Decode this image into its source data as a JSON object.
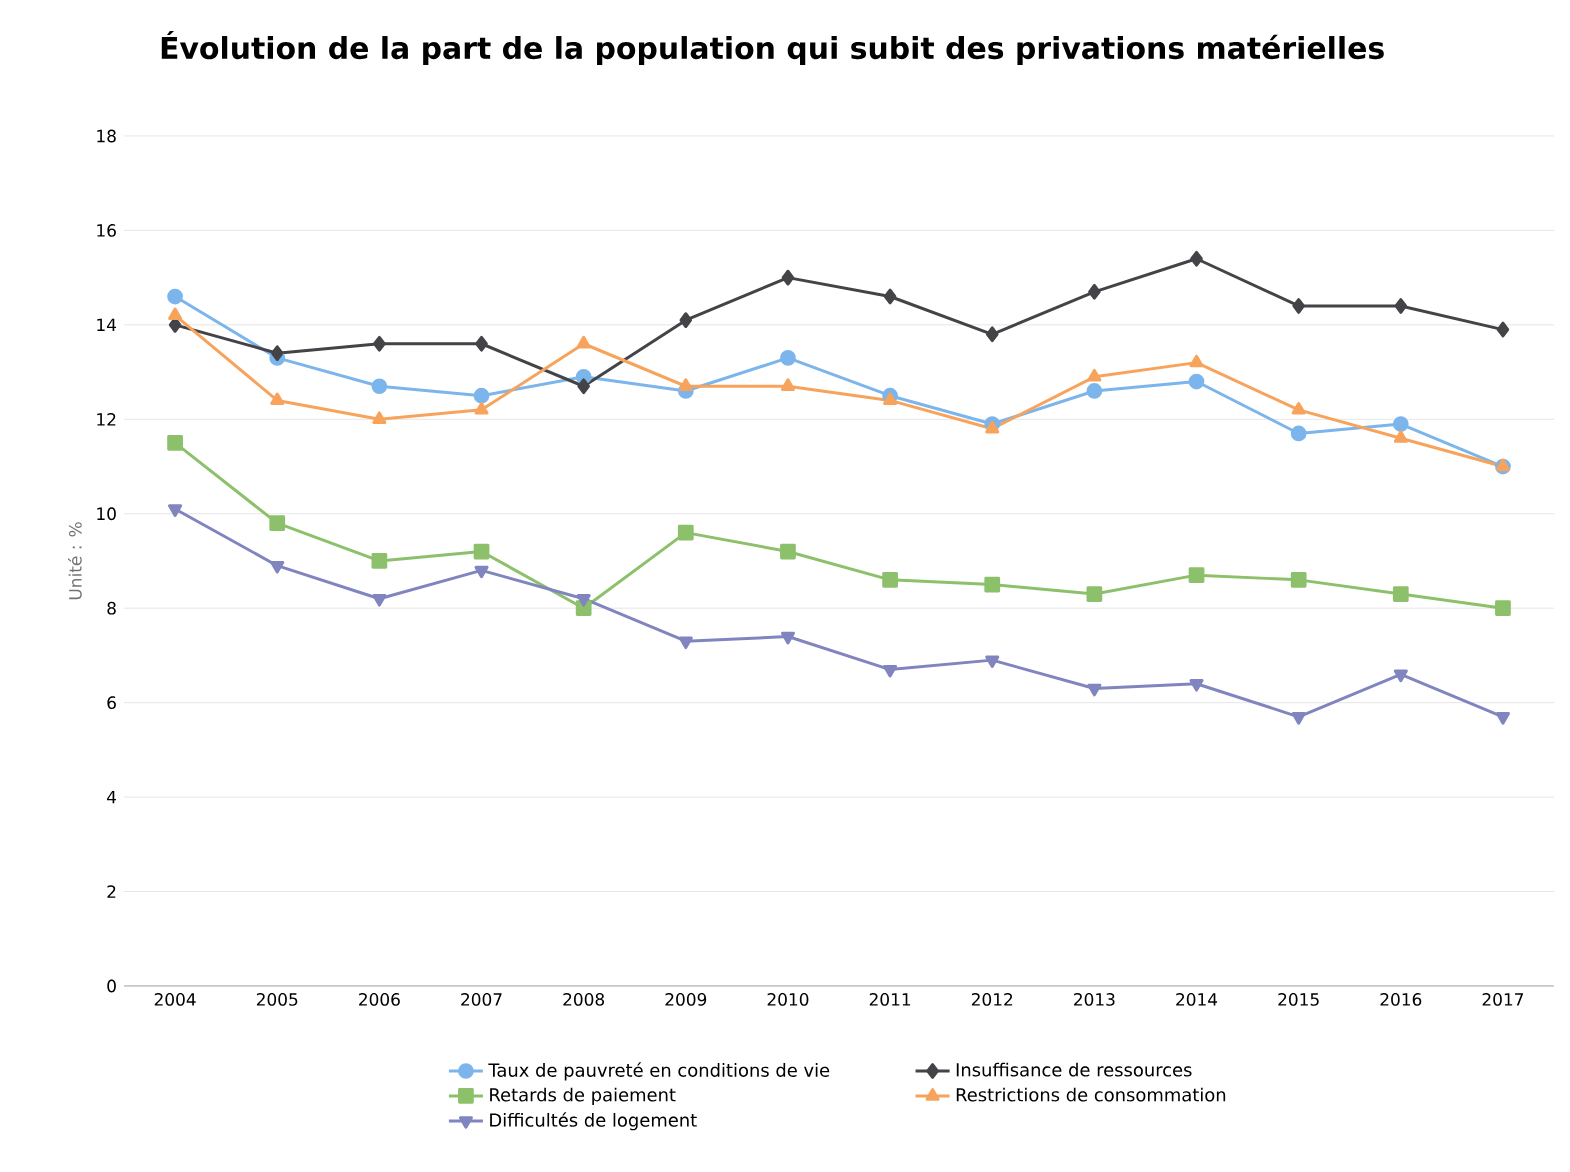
{
  "chart_data": {
    "type": "line",
    "title": "Évolution de la part de la population qui subit des privations matérielles",
    "ylabel": "Unité : %",
    "categories": [
      "2004",
      "2005",
      "2006",
      "2007",
      "2008",
      "2009",
      "2010",
      "2011",
      "2012",
      "2013",
      "2014",
      "2015",
      "2016",
      "2017"
    ],
    "ylim": [
      0,
      18
    ],
    "yticks": [
      0,
      2,
      4,
      6,
      8,
      10,
      12,
      14,
      16,
      18
    ],
    "grid": "y",
    "legend": "bottom",
    "line_style": "solid",
    "series": [
      {
        "name": "Taux de pauvreté en conditions de vie",
        "color": "#7cb5ec",
        "marker": "circle",
        "values": [
          14.6,
          13.3,
          12.7,
          12.5,
          12.9,
          12.6,
          13.3,
          12.5,
          11.9,
          12.6,
          12.8,
          11.7,
          11.9,
          11.0
        ]
      },
      {
        "name": "Insuffisance de ressources",
        "color": "#434348",
        "marker": "diamond",
        "values": [
          14.0,
          13.4,
          13.6,
          13.6,
          12.7,
          14.1,
          15.0,
          14.6,
          13.8,
          14.7,
          15.4,
          14.4,
          14.4,
          13.9
        ]
      },
      {
        "name": "Retards de paiement",
        "color": "#8cc06a",
        "marker": "square",
        "values": [
          11.5,
          9.8,
          9.0,
          9.2,
          8.0,
          9.6,
          9.2,
          8.6,
          8.5,
          8.3,
          8.7,
          8.6,
          8.3,
          8.0
        ]
      },
      {
        "name": "Restrictions de consommation",
        "color": "#f7a35c",
        "marker": "triangle",
        "values": [
          14.2,
          12.4,
          12.0,
          12.2,
          13.6,
          12.7,
          12.7,
          12.4,
          11.8,
          12.9,
          13.2,
          12.2,
          11.6,
          11.0
        ]
      },
      {
        "name": "Difficultés de logement",
        "color": "#8085c0",
        "marker": "triangle-down",
        "values": [
          10.1,
          8.9,
          8.2,
          8.8,
          8.2,
          7.3,
          7.4,
          6.7,
          6.9,
          6.3,
          6.4,
          5.7,
          6.6,
          5.7
        ]
      }
    ]
  }
}
